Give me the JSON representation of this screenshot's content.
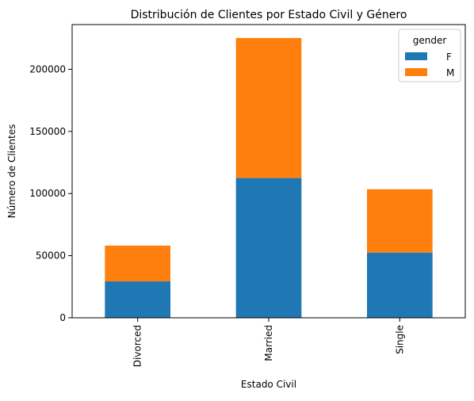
{
  "chart_data": {
    "type": "bar",
    "stacked": true,
    "title": "Distribución de Clientes por Estado Civil y Género",
    "xlabel": "Estado Civil",
    "ylabel": "Número de Clientes",
    "categories": [
      "Divorced",
      "Married",
      "Single"
    ],
    "series": [
      {
        "name": "F",
        "color": "#1f77b4",
        "values": [
          29300,
          112500,
          52500
        ]
      },
      {
        "name": "M",
        "color": "#ff7f0e",
        "values": [
          28800,
          112700,
          51000
        ]
      }
    ],
    "yticks": [
      0,
      50000,
      100000,
      150000,
      200000
    ],
    "ylim": [
      0,
      236000
    ],
    "grid": false,
    "legend": {
      "title": "gender",
      "placement": "top-right"
    }
  }
}
